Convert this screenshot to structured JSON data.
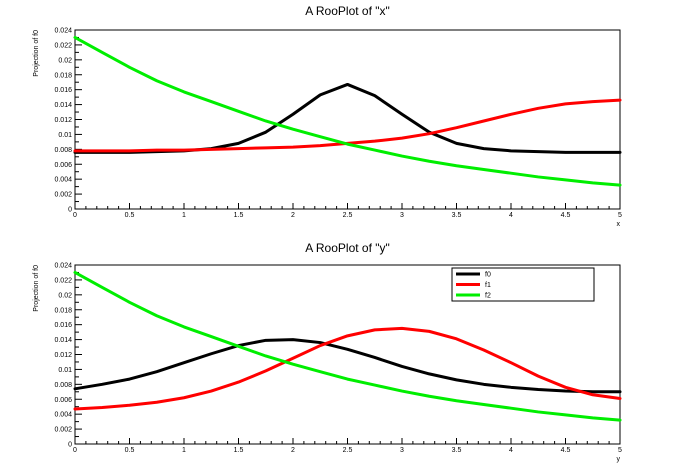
{
  "chart_data": [
    {
      "type": "line",
      "title": "A RooPlot of \"x\"",
      "xlabel": "x",
      "ylabel": "Projection of f0",
      "xlim": [
        0,
        5
      ],
      "ylim": [
        0,
        0.024
      ],
      "xticks": [
        "0",
        "0.5",
        "1",
        "1.5",
        "2",
        "2.5",
        "3",
        "3.5",
        "4",
        "4.5",
        "5"
      ],
      "yticks": [
        "0",
        "0.002",
        "0.004",
        "0.006",
        "0.008",
        "0.01",
        "0.012",
        "0.014",
        "0.016",
        "0.018",
        "0.02",
        "0.022",
        "0.024"
      ],
      "x": [
        0,
        0.25,
        0.5,
        0.75,
        1,
        1.25,
        1.5,
        1.75,
        2,
        2.25,
        2.5,
        2.75,
        3,
        3.25,
        3.5,
        3.75,
        4,
        4.25,
        4.5,
        4.75,
        5
      ],
      "legend": false,
      "series": [
        {
          "color": "#000000",
          "values": [
            0.0076,
            0.0076,
            0.0076,
            0.0077,
            0.0078,
            0.0081,
            0.0088,
            0.0103,
            0.0127,
            0.0153,
            0.0167,
            0.0152,
            0.0127,
            0.0103,
            0.0088,
            0.0081,
            0.0078,
            0.0077,
            0.0076,
            0.0076,
            0.0076
          ]
        },
        {
          "color": "#ff0000",
          "values": [
            0.0078,
            0.0078,
            0.0078,
            0.0079,
            0.0079,
            0.008,
            0.0081,
            0.0082,
            0.0083,
            0.0085,
            0.0088,
            0.0091,
            0.0095,
            0.0101,
            0.0109,
            0.0118,
            0.0127,
            0.0135,
            0.0141,
            0.0144,
            0.0146
          ]
        },
        {
          "color": "#00ee00",
          "values": [
            0.023,
            0.021,
            0.019,
            0.0172,
            0.0157,
            0.0144,
            0.0131,
            0.0118,
            0.0107,
            0.0097,
            0.0087,
            0.0079,
            0.0071,
            0.0064,
            0.0058,
            0.0053,
            0.0048,
            0.0043,
            0.0039,
            0.0035,
            0.0032
          ]
        }
      ]
    },
    {
      "type": "line",
      "title": "A RooPlot of \"y\"",
      "xlabel": "y",
      "ylabel": "Projection of f0",
      "xlim": [
        0,
        5
      ],
      "ylim": [
        0,
        0.024
      ],
      "xticks": [
        "0",
        "0.5",
        "1",
        "1.5",
        "2",
        "2.5",
        "3",
        "3.5",
        "4",
        "4.5",
        "5"
      ],
      "yticks": [
        "0",
        "0.002",
        "0.004",
        "0.006",
        "0.008",
        "0.01",
        "0.012",
        "0.014",
        "0.016",
        "0.018",
        "0.02",
        "0.022",
        "0.024"
      ],
      "x": [
        0,
        0.25,
        0.5,
        0.75,
        1,
        1.25,
        1.5,
        1.75,
        2,
        2.25,
        2.5,
        2.75,
        3,
        3.25,
        3.5,
        3.75,
        4,
        4.25,
        4.5,
        4.75,
        5
      ],
      "legend": true,
      "legend_position": "top-right",
      "series": [
        {
          "name": "f0",
          "color": "#000000",
          "values": [
            0.0074,
            0.008,
            0.0087,
            0.0097,
            0.0109,
            0.0121,
            0.0132,
            0.0139,
            0.014,
            0.0136,
            0.0127,
            0.0116,
            0.0104,
            0.0094,
            0.0086,
            0.008,
            0.0076,
            0.0073,
            0.0071,
            0.007,
            0.007
          ]
        },
        {
          "name": "f1",
          "color": "#ff0000",
          "values": [
            0.0047,
            0.0049,
            0.0052,
            0.0056,
            0.0062,
            0.0071,
            0.0083,
            0.0098,
            0.0115,
            0.0132,
            0.0145,
            0.0153,
            0.0155,
            0.0151,
            0.0141,
            0.0126,
            0.0109,
            0.0091,
            0.0076,
            0.0066,
            0.0061
          ]
        },
        {
          "name": "f2",
          "color": "#00ee00",
          "values": [
            0.023,
            0.021,
            0.019,
            0.0172,
            0.0157,
            0.0144,
            0.0131,
            0.0118,
            0.0107,
            0.0097,
            0.0087,
            0.0079,
            0.0071,
            0.0064,
            0.0058,
            0.0053,
            0.0048,
            0.0043,
            0.0039,
            0.0035,
            0.0032
          ]
        }
      ]
    }
  ]
}
